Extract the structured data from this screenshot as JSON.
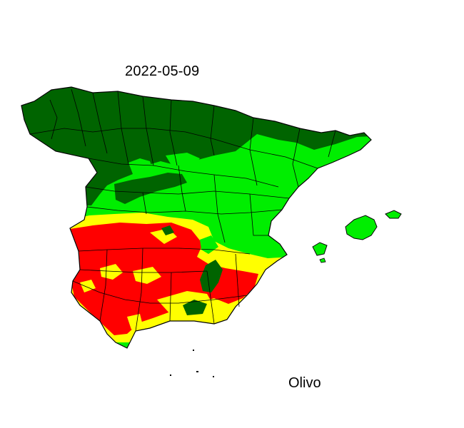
{
  "map": {
    "date": "2022-05-09",
    "crop": "Olivo",
    "colors": {
      "dark_green": "#006400",
      "light_green": "#00ee00",
      "yellow": "#ffff00",
      "red": "#ff0000",
      "border": "#000000"
    }
  }
}
